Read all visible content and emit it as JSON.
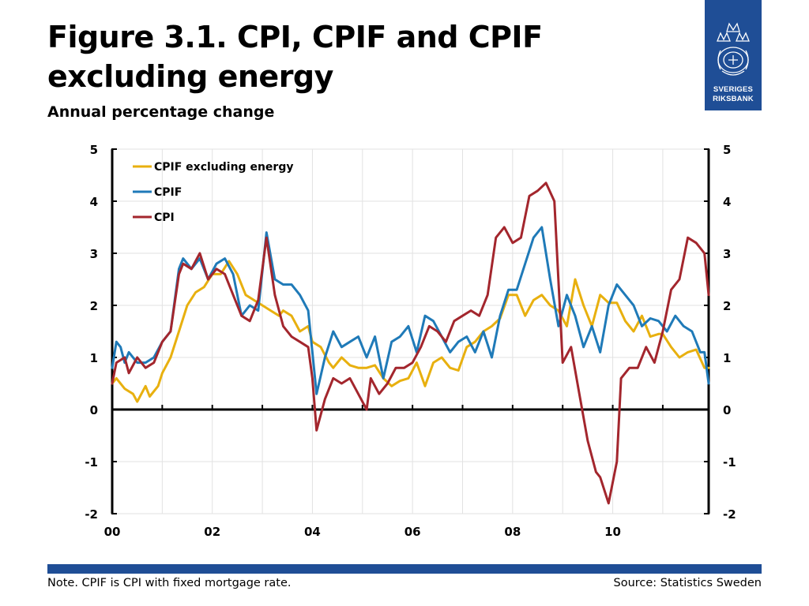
{
  "title": "Figure 3.1. CPI, CPIF and CPIF excluding energy",
  "subtitle": "Annual percentage change",
  "logo": {
    "line1": "SVERIGES",
    "line2": "RIKSBANK"
  },
  "footer": {
    "note": "Note. CPIF is CPI with fixed mortgage rate.",
    "source": "Source: Statistics Sweden"
  },
  "colors": {
    "brand": "#1f4e96",
    "cpif_ex_energy": "#e8b00f",
    "cpif": "#1f7ab8",
    "cpi": "#a3262d"
  },
  "chart_data": {
    "type": "line",
    "x_start": "2000-01",
    "x_end": "2011-12",
    "frequency": "monthly",
    "xticks": [
      "00",
      "02",
      "04",
      "06",
      "08",
      "10"
    ],
    "ylim": [
      -2,
      5
    ],
    "yticks": [
      -2,
      -1,
      0,
      1,
      2,
      3,
      4,
      5
    ],
    "grid": true,
    "legend_position": "top-left",
    "series": [
      {
        "name": "CPIF excluding energy",
        "color": "#e8b00f",
        "points": [
          [
            "2000-01",
            0.5
          ],
          [
            "2000-02",
            0.6
          ],
          [
            "2000-04",
            0.4
          ],
          [
            "2000-06",
            0.3
          ],
          [
            "2000-07",
            0.15
          ],
          [
            "2000-09",
            0.45
          ],
          [
            "2000-10",
            0.25
          ],
          [
            "2000-12",
            0.45
          ],
          [
            "2001-01",
            0.7
          ],
          [
            "2001-03",
            1.0
          ],
          [
            "2001-05",
            1.5
          ],
          [
            "2001-07",
            2.0
          ],
          [
            "2001-09",
            2.25
          ],
          [
            "2001-11",
            2.35
          ],
          [
            "2002-01",
            2.6
          ],
          [
            "2002-03",
            2.6
          ],
          [
            "2002-05",
            2.85
          ],
          [
            "2002-07",
            2.6
          ],
          [
            "2002-09",
            2.2
          ],
          [
            "2002-11",
            2.1
          ],
          [
            "2003-01",
            2.0
          ],
          [
            "2003-03",
            1.9
          ],
          [
            "2003-05",
            1.8
          ],
          [
            "2003-06",
            1.9
          ],
          [
            "2003-08",
            1.8
          ],
          [
            "2003-10",
            1.5
          ],
          [
            "2003-12",
            1.6
          ],
          [
            "2004-01",
            1.3
          ],
          [
            "2004-03",
            1.2
          ],
          [
            "2004-05",
            0.9
          ],
          [
            "2004-06",
            0.8
          ],
          [
            "2004-08",
            1.0
          ],
          [
            "2004-10",
            0.85
          ],
          [
            "2004-12",
            0.8
          ],
          [
            "2005-02",
            0.8
          ],
          [
            "2005-04",
            0.85
          ],
          [
            "2005-06",
            0.6
          ],
          [
            "2005-08",
            0.45
          ],
          [
            "2005-10",
            0.55
          ],
          [
            "2005-12",
            0.6
          ],
          [
            "2006-02",
            0.9
          ],
          [
            "2006-04",
            0.45
          ],
          [
            "2006-06",
            0.9
          ],
          [
            "2006-08",
            1.0
          ],
          [
            "2006-10",
            0.8
          ],
          [
            "2006-12",
            0.75
          ],
          [
            "2007-02",
            1.2
          ],
          [
            "2007-04",
            1.3
          ],
          [
            "2007-06",
            1.5
          ],
          [
            "2007-08",
            1.6
          ],
          [
            "2007-10",
            1.75
          ],
          [
            "2007-12",
            2.2
          ],
          [
            "2008-02",
            2.2
          ],
          [
            "2008-04",
            1.8
          ],
          [
            "2008-06",
            2.1
          ],
          [
            "2008-08",
            2.2
          ],
          [
            "2008-10",
            2.0
          ],
          [
            "2008-12",
            1.9
          ],
          [
            "2009-02",
            1.6
          ],
          [
            "2009-04",
            2.5
          ],
          [
            "2009-06",
            2.0
          ],
          [
            "2009-08",
            1.6
          ],
          [
            "2009-10",
            2.2
          ],
          [
            "2009-12",
            2.05
          ],
          [
            "2010-02",
            2.05
          ],
          [
            "2010-04",
            1.7
          ],
          [
            "2010-06",
            1.5
          ],
          [
            "2010-08",
            1.8
          ],
          [
            "2010-10",
            1.4
          ],
          [
            "2010-12",
            1.45
          ],
          [
            "2011-01",
            1.45
          ],
          [
            "2011-03",
            1.2
          ],
          [
            "2011-05",
            1.0
          ],
          [
            "2011-07",
            1.1
          ],
          [
            "2011-09",
            1.15
          ],
          [
            "2011-11",
            0.8
          ],
          [
            "2011-12",
            0.8
          ]
        ]
      },
      {
        "name": "CPIF",
        "color": "#1f7ab8",
        "points": [
          [
            "2000-01",
            0.8
          ],
          [
            "2000-02",
            1.3
          ],
          [
            "2000-03",
            1.2
          ],
          [
            "2000-04",
            0.9
          ],
          [
            "2000-05",
            1.1
          ],
          [
            "2000-07",
            0.9
          ],
          [
            "2000-09",
            0.9
          ],
          [
            "2000-11",
            1.0
          ],
          [
            "2001-01",
            1.3
          ],
          [
            "2001-03",
            1.5
          ],
          [
            "2001-05",
            2.7
          ],
          [
            "2001-06",
            2.9
          ],
          [
            "2001-08",
            2.7
          ],
          [
            "2001-10",
            2.9
          ],
          [
            "2001-12",
            2.5
          ],
          [
            "2002-02",
            2.8
          ],
          [
            "2002-04",
            2.9
          ],
          [
            "2002-06",
            2.6
          ],
          [
            "2002-08",
            1.8
          ],
          [
            "2002-10",
            2.0
          ],
          [
            "2002-12",
            1.9
          ],
          [
            "2003-02",
            3.4
          ],
          [
            "2003-04",
            2.5
          ],
          [
            "2003-06",
            2.4
          ],
          [
            "2003-08",
            2.4
          ],
          [
            "2003-10",
            2.2
          ],
          [
            "2003-12",
            1.9
          ],
          [
            "2004-01",
            1.1
          ],
          [
            "2004-02",
            0.3
          ],
          [
            "2004-04",
            1.0
          ],
          [
            "2004-06",
            1.5
          ],
          [
            "2004-08",
            1.2
          ],
          [
            "2004-10",
            1.3
          ],
          [
            "2004-12",
            1.4
          ],
          [
            "2005-02",
            1.0
          ],
          [
            "2005-04",
            1.4
          ],
          [
            "2005-06",
            0.6
          ],
          [
            "2005-08",
            1.3
          ],
          [
            "2005-10",
            1.4
          ],
          [
            "2005-12",
            1.6
          ],
          [
            "2006-02",
            1.1
          ],
          [
            "2006-04",
            1.8
          ],
          [
            "2006-06",
            1.7
          ],
          [
            "2006-08",
            1.4
          ],
          [
            "2006-10",
            1.1
          ],
          [
            "2006-12",
            1.3
          ],
          [
            "2007-02",
            1.4
          ],
          [
            "2007-04",
            1.1
          ],
          [
            "2007-06",
            1.5
          ],
          [
            "2007-08",
            1.0
          ],
          [
            "2007-10",
            1.8
          ],
          [
            "2007-12",
            2.3
          ],
          [
            "2008-02",
            2.3
          ],
          [
            "2008-04",
            2.8
          ],
          [
            "2008-06",
            3.3
          ],
          [
            "2008-08",
            3.5
          ],
          [
            "2008-10",
            2.5
          ],
          [
            "2008-12",
            1.6
          ],
          [
            "2009-02",
            2.2
          ],
          [
            "2009-04",
            1.8
          ],
          [
            "2009-06",
            1.2
          ],
          [
            "2009-08",
            1.6
          ],
          [
            "2009-10",
            1.1
          ],
          [
            "2009-12",
            2.0
          ],
          [
            "2010-02",
            2.4
          ],
          [
            "2010-04",
            2.2
          ],
          [
            "2010-06",
            2.0
          ],
          [
            "2010-08",
            1.6
          ],
          [
            "2010-10",
            1.75
          ],
          [
            "2010-12",
            1.7
          ],
          [
            "2011-02",
            1.5
          ],
          [
            "2011-04",
            1.8
          ],
          [
            "2011-06",
            1.6
          ],
          [
            "2011-08",
            1.5
          ],
          [
            "2011-10",
            1.1
          ],
          [
            "2011-11",
            1.1
          ],
          [
            "2011-12",
            0.5
          ]
        ]
      },
      {
        "name": "CPI",
        "color": "#a3262d",
        "points": [
          [
            "2000-01",
            0.5
          ],
          [
            "2000-02",
            0.9
          ],
          [
            "2000-04",
            1.0
          ],
          [
            "2000-05",
            0.7
          ],
          [
            "2000-07",
            1.0
          ],
          [
            "2000-09",
            0.8
          ],
          [
            "2000-11",
            0.9
          ],
          [
            "2001-01",
            1.3
          ],
          [
            "2001-03",
            1.5
          ],
          [
            "2001-05",
            2.6
          ],
          [
            "2001-06",
            2.8
          ],
          [
            "2001-08",
            2.7
          ],
          [
            "2001-10",
            3.0
          ],
          [
            "2001-12",
            2.5
          ],
          [
            "2002-02",
            2.7
          ],
          [
            "2002-04",
            2.6
          ],
          [
            "2002-06",
            2.2
          ],
          [
            "2002-08",
            1.8
          ],
          [
            "2002-10",
            1.7
          ],
          [
            "2002-12",
            2.1
          ],
          [
            "2003-02",
            3.3
          ],
          [
            "2003-04",
            2.2
          ],
          [
            "2003-06",
            1.6
          ],
          [
            "2003-08",
            1.4
          ],
          [
            "2003-10",
            1.3
          ],
          [
            "2003-12",
            1.2
          ],
          [
            "2004-01",
            0.6
          ],
          [
            "2004-02",
            -0.4
          ],
          [
            "2004-04",
            0.2
          ],
          [
            "2004-06",
            0.6
          ],
          [
            "2004-08",
            0.5
          ],
          [
            "2004-10",
            0.6
          ],
          [
            "2004-12",
            0.3
          ],
          [
            "2005-02",
            0.0
          ],
          [
            "2005-03",
            0.6
          ],
          [
            "2005-05",
            0.3
          ],
          [
            "2005-07",
            0.5
          ],
          [
            "2005-09",
            0.8
          ],
          [
            "2005-11",
            0.8
          ],
          [
            "2006-01",
            0.9
          ],
          [
            "2006-03",
            1.2
          ],
          [
            "2006-05",
            1.6
          ],
          [
            "2006-07",
            1.5
          ],
          [
            "2006-09",
            1.3
          ],
          [
            "2006-11",
            1.7
          ],
          [
            "2007-01",
            1.8
          ],
          [
            "2007-03",
            1.9
          ],
          [
            "2007-05",
            1.8
          ],
          [
            "2007-07",
            2.2
          ],
          [
            "2007-09",
            3.3
          ],
          [
            "2007-11",
            3.5
          ],
          [
            "2008-01",
            3.2
          ],
          [
            "2008-03",
            3.3
          ],
          [
            "2008-05",
            4.1
          ],
          [
            "2008-07",
            4.2
          ],
          [
            "2008-09",
            4.35
          ],
          [
            "2008-11",
            4.0
          ],
          [
            "2009-01",
            0.9
          ],
          [
            "2009-03",
            1.2
          ],
          [
            "2009-05",
            0.3
          ],
          [
            "2009-07",
            -0.6
          ],
          [
            "2009-09",
            -1.2
          ],
          [
            "2009-10",
            -1.3
          ],
          [
            "2009-12",
            -1.8
          ],
          [
            "2010-02",
            -1.0
          ],
          [
            "2010-03",
            0.6
          ],
          [
            "2010-05",
            0.8
          ],
          [
            "2010-07",
            0.8
          ],
          [
            "2010-09",
            1.2
          ],
          [
            "2010-11",
            0.9
          ],
          [
            "2011-01",
            1.5
          ],
          [
            "2011-03",
            2.3
          ],
          [
            "2011-05",
            2.5
          ],
          [
            "2011-07",
            3.3
          ],
          [
            "2011-09",
            3.2
          ],
          [
            "2011-11",
            3.0
          ],
          [
            "2011-12",
            2.2
          ]
        ]
      }
    ]
  }
}
